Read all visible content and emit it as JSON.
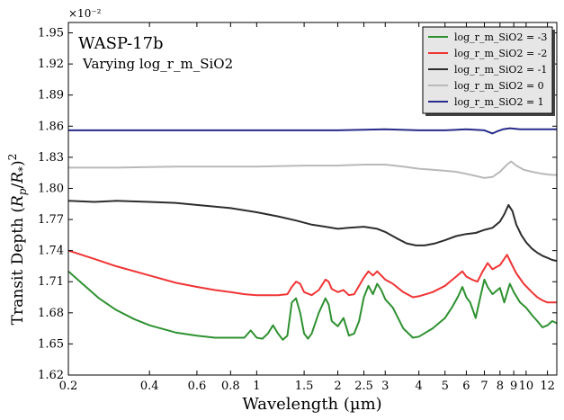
{
  "chart_data": {
    "type": "line",
    "title": "WASP-17b",
    "subtitle": "Varying log_r_m_SiO2",
    "xlabel": "Wavelength (µm)",
    "ylabel_plain": "Transit Depth (R_p/R_*)^2",
    "y_multiplier": "×10⁻²",
    "x_scale": "log",
    "xlim": [
      0.2,
      13.0
    ],
    "ylim": [
      1.62,
      1.96
    ],
    "x_ticks": [
      0.2,
      0.4,
      0.6,
      0.8,
      1,
      1.5,
      2,
      2.5,
      3,
      4,
      5,
      6,
      7,
      8,
      9,
      10,
      12
    ],
    "x_tick_labels": [
      "0.2",
      "0.4",
      "0.6",
      "0.8",
      "1",
      "1.5",
      "2",
      "2.5",
      "3",
      "4",
      "5",
      "6",
      "7",
      "8",
      "9",
      "10",
      "12"
    ],
    "y_ticks": [
      1.62,
      1.65,
      1.68,
      1.71,
      1.74,
      1.77,
      1.8,
      1.83,
      1.86,
      1.89,
      1.92,
      1.95
    ],
    "y_tick_labels": [
      "1.62",
      "1.65",
      "1.68",
      "1.71",
      "1.74",
      "1.77",
      "1.80",
      "1.83",
      "1.86",
      "1.89",
      "1.92",
      "1.95"
    ],
    "grid": false,
    "legend_position": "top-right",
    "series": [
      {
        "name": "log_r_m_SiO2 = -3",
        "color": "#2e9130",
        "points": [
          [
            0.2,
            1.72
          ],
          [
            0.23,
            1.706
          ],
          [
            0.26,
            1.694
          ],
          [
            0.3,
            1.683
          ],
          [
            0.35,
            1.674
          ],
          [
            0.4,
            1.668
          ],
          [
            0.5,
            1.661
          ],
          [
            0.6,
            1.658
          ],
          [
            0.7,
            1.656
          ],
          [
            0.8,
            1.656
          ],
          [
            0.9,
            1.656
          ],
          [
            0.95,
            1.663
          ],
          [
            1.0,
            1.656
          ],
          [
            1.05,
            1.655
          ],
          [
            1.1,
            1.66
          ],
          [
            1.15,
            1.668
          ],
          [
            1.2,
            1.66
          ],
          [
            1.25,
            1.654
          ],
          [
            1.3,
            1.658
          ],
          [
            1.35,
            1.69
          ],
          [
            1.4,
            1.694
          ],
          [
            1.45,
            1.68
          ],
          [
            1.5,
            1.66
          ],
          [
            1.55,
            1.655
          ],
          [
            1.6,
            1.66
          ],
          [
            1.7,
            1.68
          ],
          [
            1.8,
            1.694
          ],
          [
            1.85,
            1.688
          ],
          [
            1.9,
            1.672
          ],
          [
            2.0,
            1.667
          ],
          [
            2.1,
            1.675
          ],
          [
            2.2,
            1.658
          ],
          [
            2.3,
            1.66
          ],
          [
            2.4,
            1.672
          ],
          [
            2.5,
            1.695
          ],
          [
            2.6,
            1.706
          ],
          [
            2.7,
            1.698
          ],
          [
            2.8,
            1.708
          ],
          [
            2.9,
            1.702
          ],
          [
            3.0,
            1.693
          ],
          [
            3.2,
            1.685
          ],
          [
            3.5,
            1.665
          ],
          [
            3.8,
            1.656
          ],
          [
            4.0,
            1.657
          ],
          [
            4.5,
            1.665
          ],
          [
            5.0,
            1.675
          ],
          [
            5.3,
            1.685
          ],
          [
            5.6,
            1.696
          ],
          [
            5.8,
            1.705
          ],
          [
            6.0,
            1.695
          ],
          [
            6.2,
            1.69
          ],
          [
            6.5,
            1.675
          ],
          [
            6.8,
            1.698
          ],
          [
            7.0,
            1.712
          ],
          [
            7.2,
            1.705
          ],
          [
            7.5,
            1.698
          ],
          [
            8.0,
            1.704
          ],
          [
            8.3,
            1.69
          ],
          [
            8.7,
            1.708
          ],
          [
            9.0,
            1.7
          ],
          [
            9.5,
            1.69
          ],
          [
            10.0,
            1.685
          ],
          [
            10.5,
            1.678
          ],
          [
            11.0,
            1.672
          ],
          [
            11.5,
            1.666
          ],
          [
            12.0,
            1.668
          ],
          [
            12.5,
            1.672
          ],
          [
            13.0,
            1.67
          ]
        ]
      },
      {
        "name": "log_r_m_SiO2 = -2",
        "color": "#f03434",
        "points": [
          [
            0.2,
            1.74
          ],
          [
            0.25,
            1.732
          ],
          [
            0.3,
            1.725
          ],
          [
            0.4,
            1.716
          ],
          [
            0.5,
            1.709
          ],
          [
            0.6,
            1.705
          ],
          [
            0.7,
            1.702
          ],
          [
            0.8,
            1.7
          ],
          [
            0.9,
            1.698
          ],
          [
            1.0,
            1.697
          ],
          [
            1.1,
            1.697
          ],
          [
            1.2,
            1.697
          ],
          [
            1.3,
            1.698
          ],
          [
            1.35,
            1.705
          ],
          [
            1.4,
            1.71
          ],
          [
            1.45,
            1.708
          ],
          [
            1.5,
            1.7
          ],
          [
            1.6,
            1.697
          ],
          [
            1.7,
            1.702
          ],
          [
            1.8,
            1.712
          ],
          [
            1.85,
            1.71
          ],
          [
            1.9,
            1.703
          ],
          [
            2.0,
            1.7
          ],
          [
            2.1,
            1.702
          ],
          [
            2.2,
            1.697
          ],
          [
            2.3,
            1.698
          ],
          [
            2.4,
            1.706
          ],
          [
            2.5,
            1.714
          ],
          [
            2.6,
            1.72
          ],
          [
            2.7,
            1.716
          ],
          [
            2.8,
            1.72
          ],
          [
            2.9,
            1.716
          ],
          [
            3.0,
            1.712
          ],
          [
            3.2,
            1.708
          ],
          [
            3.5,
            1.7
          ],
          [
            3.8,
            1.695
          ],
          [
            4.0,
            1.696
          ],
          [
            4.5,
            1.7
          ],
          [
            5.0,
            1.706
          ],
          [
            5.5,
            1.715
          ],
          [
            5.8,
            1.72
          ],
          [
            6.0,
            1.715
          ],
          [
            6.3,
            1.712
          ],
          [
            6.6,
            1.71
          ],
          [
            6.9,
            1.72
          ],
          [
            7.2,
            1.728
          ],
          [
            7.5,
            1.722
          ],
          [
            8.0,
            1.726
          ],
          [
            8.5,
            1.736
          ],
          [
            8.8,
            1.728
          ],
          [
            9.2,
            1.718
          ],
          [
            9.8,
            1.708
          ],
          [
            10.5,
            1.7
          ],
          [
            11.0,
            1.695
          ],
          [
            11.5,
            1.692
          ],
          [
            12.0,
            1.69
          ],
          [
            13.0,
            1.69
          ]
        ]
      },
      {
        "name": "log_r_m_SiO2 = -1",
        "color": "#2d2d2d",
        "points": [
          [
            0.2,
            1.788
          ],
          [
            0.25,
            1.787
          ],
          [
            0.3,
            1.788
          ],
          [
            0.4,
            1.787
          ],
          [
            0.5,
            1.786
          ],
          [
            0.6,
            1.784
          ],
          [
            0.8,
            1.781
          ],
          [
            1.0,
            1.777
          ],
          [
            1.2,
            1.773
          ],
          [
            1.4,
            1.769
          ],
          [
            1.6,
            1.765
          ],
          [
            1.8,
            1.763
          ],
          [
            2.0,
            1.761
          ],
          [
            2.2,
            1.762
          ],
          [
            2.5,
            1.763
          ],
          [
            2.8,
            1.761
          ],
          [
            3.0,
            1.758
          ],
          [
            3.3,
            1.752
          ],
          [
            3.6,
            1.747
          ],
          [
            3.9,
            1.745
          ],
          [
            4.2,
            1.745
          ],
          [
            4.6,
            1.747
          ],
          [
            5.0,
            1.75
          ],
          [
            5.5,
            1.754
          ],
          [
            6.0,
            1.756
          ],
          [
            6.5,
            1.757
          ],
          [
            7.0,
            1.76
          ],
          [
            7.5,
            1.762
          ],
          [
            8.0,
            1.768
          ],
          [
            8.3,
            1.775
          ],
          [
            8.6,
            1.784
          ],
          [
            8.9,
            1.778
          ],
          [
            9.2,
            1.765
          ],
          [
            9.6,
            1.755
          ],
          [
            10.0,
            1.748
          ],
          [
            10.5,
            1.742
          ],
          [
            11.0,
            1.738
          ],
          [
            11.5,
            1.735
          ],
          [
            12.0,
            1.733
          ],
          [
            12.5,
            1.731
          ],
          [
            13.0,
            1.73
          ]
        ]
      },
      {
        "name": "log_r_m_SiO2 = 0",
        "color": "#b9b9b9",
        "points": [
          [
            0.2,
            1.82
          ],
          [
            0.3,
            1.82
          ],
          [
            0.5,
            1.821
          ],
          [
            0.8,
            1.821
          ],
          [
            1.0,
            1.821
          ],
          [
            1.5,
            1.822
          ],
          [
            2.0,
            1.822
          ],
          [
            2.5,
            1.823
          ],
          [
            3.0,
            1.823
          ],
          [
            3.5,
            1.821
          ],
          [
            4.0,
            1.819
          ],
          [
            4.5,
            1.818
          ],
          [
            5.0,
            1.817
          ],
          [
            5.5,
            1.816
          ],
          [
            6.0,
            1.814
          ],
          [
            6.5,
            1.812
          ],
          [
            7.0,
            1.81
          ],
          [
            7.5,
            1.811
          ],
          [
            8.0,
            1.816
          ],
          [
            8.5,
            1.823
          ],
          [
            8.8,
            1.826
          ],
          [
            9.2,
            1.822
          ],
          [
            9.8,
            1.818
          ],
          [
            10.5,
            1.816
          ],
          [
            11.5,
            1.814
          ],
          [
            12.5,
            1.813
          ],
          [
            13.0,
            1.813
          ]
        ]
      },
      {
        "name": "log_r_m_SiO2 = 1",
        "color": "#272b8a",
        "points": [
          [
            0.2,
            1.856
          ],
          [
            0.5,
            1.856
          ],
          [
            1.0,
            1.856
          ],
          [
            2.0,
            1.856
          ],
          [
            3.0,
            1.857
          ],
          [
            4.0,
            1.856
          ],
          [
            5.0,
            1.856
          ],
          [
            6.0,
            1.857
          ],
          [
            7.0,
            1.856
          ],
          [
            7.5,
            1.853
          ],
          [
            7.8,
            1.855
          ],
          [
            8.2,
            1.857
          ],
          [
            8.7,
            1.858
          ],
          [
            9.5,
            1.857
          ],
          [
            11.0,
            1.857
          ],
          [
            13.0,
            1.857
          ]
        ]
      }
    ]
  }
}
